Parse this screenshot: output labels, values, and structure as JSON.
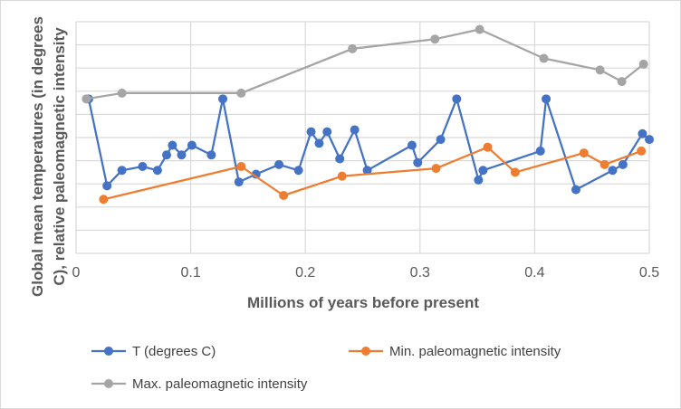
{
  "chart_data": {
    "type": "line",
    "title": "",
    "xlabel": "Millions of years before present",
    "ylabel_lines": [
      "Global mean temperatures (in degrees",
      "C), relative paleomagnetic intensity"
    ],
    "xlim": [
      0,
      0.5
    ],
    "x_ticks": [
      "0",
      "0.1",
      "0.2",
      "0.3",
      "0.4",
      "0.5"
    ],
    "y_gridlines": 11,
    "y_tick_labels_shown": false,
    "grid": true,
    "legend_position": "bottom",
    "series": [
      {
        "name": "T (degrees C)",
        "color": "#4472C4",
        "points": [
          [
            0.011,
            8.0
          ],
          [
            0.027,
            3.5
          ],
          [
            0.04,
            4.3
          ],
          [
            0.058,
            4.5
          ],
          [
            0.071,
            4.3
          ],
          [
            0.079,
            5.1
          ],
          [
            0.084,
            5.6
          ],
          [
            0.092,
            5.1
          ],
          [
            0.101,
            5.6
          ],
          [
            0.118,
            5.1
          ],
          [
            0.128,
            8.0
          ],
          [
            0.142,
            3.7
          ],
          [
            0.157,
            4.1
          ],
          [
            0.177,
            4.6
          ],
          [
            0.194,
            4.3
          ],
          [
            0.205,
            6.3
          ],
          [
            0.212,
            5.7
          ],
          [
            0.219,
            6.3
          ],
          [
            0.23,
            4.9
          ],
          [
            0.243,
            6.4
          ],
          [
            0.254,
            4.3
          ],
          [
            0.293,
            5.6
          ],
          [
            0.298,
            4.7
          ],
          [
            0.318,
            5.9
          ],
          [
            0.332,
            8.0
          ],
          [
            0.351,
            3.8
          ],
          [
            0.355,
            4.3
          ],
          [
            0.405,
            5.3
          ],
          [
            0.41,
            8.0
          ],
          [
            0.436,
            3.3
          ],
          [
            0.468,
            4.3
          ],
          [
            0.477,
            4.6
          ],
          [
            0.494,
            6.2
          ],
          [
            0.5,
            5.9
          ]
        ]
      },
      {
        "name": "Min. paleomagnetic intensity",
        "color": "#ED7D31",
        "points": [
          [
            0.024,
            2.8
          ],
          [
            0.144,
            4.5
          ],
          [
            0.181,
            3.0
          ],
          [
            0.232,
            4.0
          ],
          [
            0.314,
            4.4
          ],
          [
            0.359,
            5.5
          ],
          [
            0.383,
            4.2
          ],
          [
            0.443,
            5.2
          ],
          [
            0.461,
            4.6
          ],
          [
            0.493,
            5.3
          ]
        ]
      },
      {
        "name": "Max. paleomagnetic intensity",
        "color": "#A5A5A5",
        "points": [
          [
            0.009,
            8.0
          ],
          [
            0.04,
            8.3
          ],
          [
            0.144,
            8.3
          ],
          [
            0.241,
            10.6
          ],
          [
            0.313,
            11.1
          ],
          [
            0.352,
            11.6
          ],
          [
            0.408,
            10.1
          ],
          [
            0.457,
            9.5
          ],
          [
            0.476,
            8.9
          ],
          [
            0.495,
            9.8
          ]
        ]
      }
    ]
  }
}
